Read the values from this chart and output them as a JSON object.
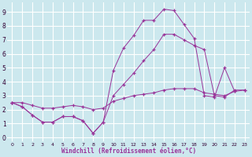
{
  "bg_color": "#cce8ee",
  "grid_color": "#ffffff",
  "line_color": "#993399",
  "xlabel": "Windchill (Refroidissement éolien,°C)",
  "ylabel_ticks": [
    0,
    1,
    2,
    3,
    4,
    5,
    6,
    7,
    8,
    9
  ],
  "xlabel_ticks": [
    0,
    1,
    2,
    3,
    4,
    5,
    6,
    7,
    8,
    9,
    10,
    11,
    12,
    13,
    14,
    15,
    16,
    17,
    18,
    19,
    20,
    21,
    22,
    23
  ],
  "xlim": [
    -0.5,
    23.5
  ],
  "ylim": [
    -0.3,
    9.7
  ],
  "series": [
    [
      2.5,
      2.2,
      1.6,
      1.1,
      1.1,
      1.5,
      1.5,
      1.2,
      0.3,
      1.1,
      4.8,
      6.4,
      7.3,
      8.4,
      8.4,
      9.2,
      9.1,
      8.1,
      7.1,
      3.0,
      2.9,
      5.0,
      3.3
    ],
    [
      2.5,
      2.2,
      1.6,
      1.1,
      1.1,
      1.5,
      1.5,
      1.2,
      0.3,
      1.1,
      3.0,
      3.8,
      4.6,
      5.5,
      6.3,
      7.4,
      7.4,
      7.0,
      6.6,
      6.3,
      3.0,
      2.9,
      3.4,
      3.4
    ],
    [
      2.5,
      2.5,
      2.3,
      2.1,
      2.1,
      2.2,
      2.3,
      2.2,
      2.0,
      2.1,
      2.6,
      2.8,
      3.0,
      3.1,
      3.2,
      3.4,
      3.5,
      3.5,
      3.5,
      3.2,
      3.1,
      3.0,
      3.3,
      3.4
    ]
  ],
  "series_x": [
    [
      0,
      1,
      2,
      3,
      4,
      5,
      6,
      7,
      8,
      9,
      10,
      11,
      12,
      13,
      14,
      15,
      16,
      17,
      18,
      19,
      20,
      21,
      22
    ],
    [
      0,
      1,
      2,
      3,
      4,
      5,
      6,
      7,
      8,
      9,
      10,
      11,
      12,
      13,
      14,
      15,
      16,
      17,
      18,
      19,
      20,
      21,
      22,
      23
    ],
    [
      0,
      1,
      2,
      3,
      4,
      5,
      6,
      7,
      8,
      9,
      10,
      11,
      12,
      13,
      14,
      15,
      16,
      17,
      18,
      19,
      20,
      21,
      22,
      23
    ]
  ]
}
